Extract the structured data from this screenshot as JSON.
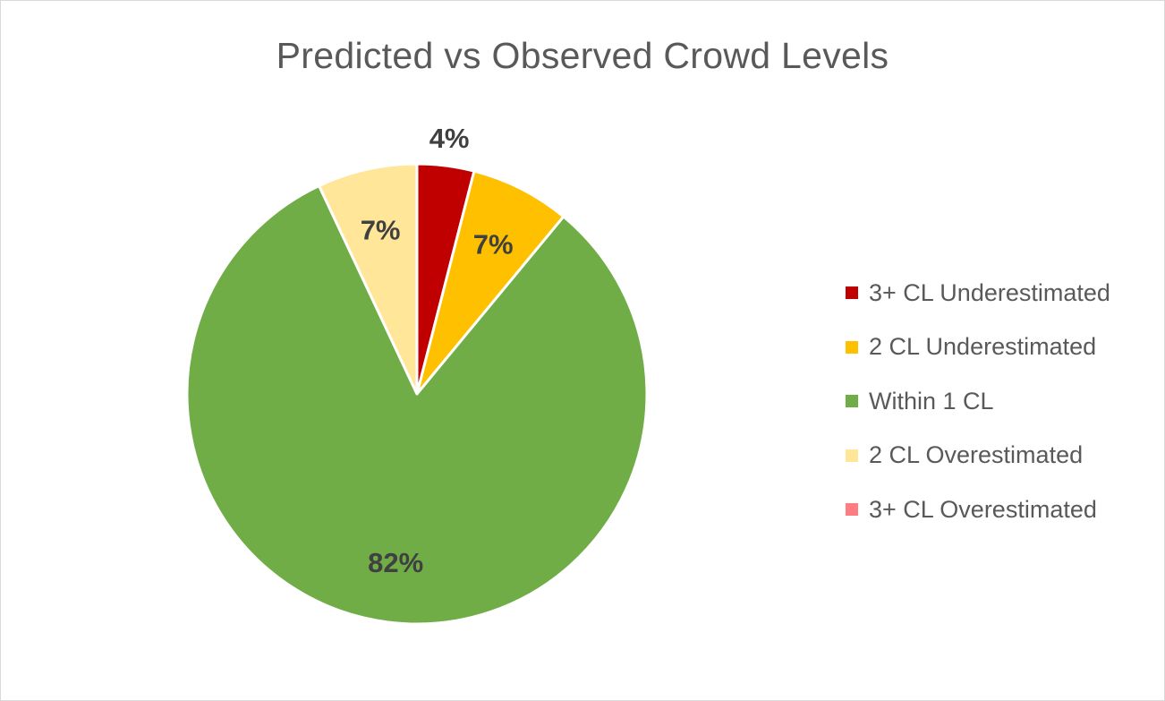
{
  "chart_data": {
    "type": "pie",
    "title": "Predicted vs Observed Crowd Levels",
    "slices": [
      {
        "label": "3+ CL Underestimated",
        "value": 4,
        "value_label": "4%",
        "color": "#C00000"
      },
      {
        "label": "2 CL Underestimated",
        "value": 7,
        "value_label": "7%",
        "color": "#FFC000"
      },
      {
        "label": "Within 1 CL",
        "value": 82,
        "value_label": "82%",
        "color": "#70AD47"
      },
      {
        "label": "2 CL Overestimated",
        "value": 7,
        "value_label": "7%",
        "color": "#FFE699"
      },
      {
        "label": "3+ CL Overestimated",
        "value": 0,
        "value_label": "",
        "color": "#FF7C80"
      }
    ],
    "legend_position": "right",
    "start_angle": "top, clockwise"
  }
}
